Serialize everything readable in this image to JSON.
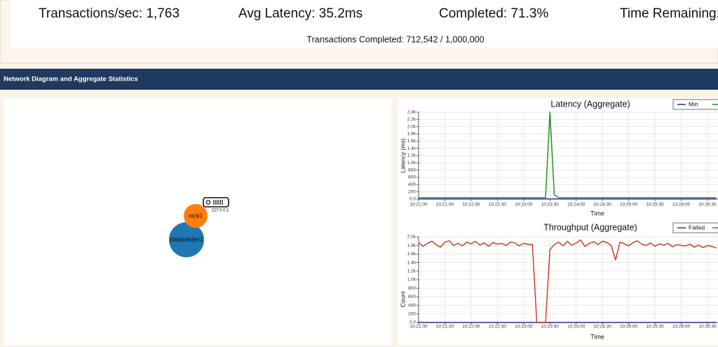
{
  "header": {
    "stats": [
      "Transactions/sec: 1,763",
      "Avg Latency: 35.2ms",
      "Completed: 71.3%",
      "Time Remaining:"
    ],
    "progress": "Transactions Completed: 712,542 / 1,000,000"
  },
  "section_title": "Network Diagram and Aggregate Statistics",
  "network": {
    "nodes": [
      {
        "label": "datacenter1"
      },
      {
        "label": "rack1"
      },
      {
        "label": "127.0.0.1"
      }
    ]
  },
  "chart_data": [
    {
      "type": "line",
      "title": "Latency (Aggregate)",
      "xlabel": "Time",
      "ylabel": "Latency (ms)",
      "grid": true,
      "x": [
        "10:21:00",
        "10:21:05",
        "10:21:10",
        "10:21:15",
        "10:21:20",
        "10:21:25",
        "10:21:30",
        "10:21:35",
        "10:21:40",
        "10:21:45",
        "10:21:50",
        "10:21:55",
        "10:22:00",
        "10:22:05",
        "10:22:10",
        "10:22:15",
        "10:22:20",
        "10:22:25",
        "10:22:30",
        "10:22:35",
        "10:22:40",
        "10:22:45",
        "10:22:50",
        "10:22:55",
        "10:23:00",
        "10:23:05",
        "10:23:10",
        "10:23:15",
        "10:23:20",
        "10:23:25",
        "10:23:30",
        "10:23:35",
        "10:23:40",
        "10:23:45",
        "10:23:50",
        "10:23:55",
        "10:24:00",
        "10:24:05",
        "10:24:10",
        "10:24:15",
        "10:24:20",
        "10:24:25",
        "10:24:30",
        "10:24:35",
        "10:24:40",
        "10:24:45",
        "10:24:50",
        "10:24:55",
        "10:25:00",
        "10:25:05",
        "10:25:10",
        "10:25:15",
        "10:25:20",
        "10:25:25",
        "10:25:30",
        "10:25:35",
        "10:25:40",
        "10:25:45",
        "10:25:50",
        "10:25:55",
        "10:26:00",
        "10:26:05",
        "10:26:10",
        "10:26:15",
        "10:26:20",
        "10:26:25",
        "10:26:30",
        "10:26:35",
        "10:26:40"
      ],
      "xlim": [
        "10:21:00",
        "10:26:42"
      ],
      "xticks": [
        "10:21:00",
        "10:21:30",
        "10:22:00",
        "10:22:30",
        "10:23:00",
        "10:23:30",
        "10:24:00",
        "10:24:30",
        "10:25:00",
        "10:25:30",
        "10:26:00",
        "10:26:30"
      ],
      "ylim": [
        0,
        2400
      ],
      "yticks": [
        {
          "value": 0,
          "label": "0.0"
        },
        200,
        400,
        600,
        800,
        {
          "value": 1000,
          "label": "1.0k"
        },
        {
          "value": 1200,
          "label": "1.2k"
        },
        {
          "value": 1400,
          "label": "1.4k"
        },
        {
          "value": 1600,
          "label": "1.6k"
        },
        {
          "value": 1800,
          "label": "1.8k"
        },
        {
          "value": 2000,
          "label": "2.0k"
        },
        {
          "value": 2200,
          "label": "2.2k"
        },
        {
          "value": 2400,
          "label": "2.4k"
        }
      ],
      "series": [
        {
          "name": "Min",
          "color": "#2a2a9a",
          "values": [
            5,
            5,
            5,
            5,
            5,
            5,
            5,
            5,
            5,
            5,
            5,
            5,
            5,
            5,
            5,
            5,
            5,
            5,
            5,
            5,
            5,
            5,
            5,
            5,
            5,
            5,
            5,
            5,
            5,
            5,
            5,
            5,
            5,
            5,
            5,
            5,
            5,
            5,
            5,
            5,
            5,
            5,
            5,
            5,
            5,
            5,
            5,
            5,
            5,
            5,
            5,
            5,
            5,
            5,
            5,
            5,
            5,
            5,
            5,
            5,
            5,
            5,
            5,
            5,
            5,
            5,
            5,
            5,
            5
          ]
        },
        {
          "color": "#1a8a1a",
          "values": [
            40,
            40,
            40,
            40,
            40,
            40,
            40,
            40,
            40,
            40,
            40,
            40,
            40,
            40,
            40,
            40,
            40,
            40,
            40,
            40,
            40,
            40,
            40,
            40,
            40,
            40,
            40,
            40,
            40,
            40,
            2400,
            120,
            40,
            40,
            40,
            40,
            40,
            40,
            40,
            40,
            40,
            40,
            40,
            40,
            40,
            40,
            40,
            40,
            40,
            40,
            40,
            40,
            40,
            40,
            40,
            40,
            40,
            40,
            40,
            40,
            40,
            40,
            40,
            40,
            40,
            40,
            40,
            40,
            40
          ]
        }
      ]
    },
    {
      "type": "line",
      "title": "Throughput (Aggregate)",
      "xlabel": "Time",
      "ylabel": "Count",
      "grid": true,
      "x": [
        "10:21:00",
        "10:21:05",
        "10:21:10",
        "10:21:15",
        "10:21:20",
        "10:21:25",
        "10:21:30",
        "10:21:35",
        "10:21:40",
        "10:21:45",
        "10:21:50",
        "10:21:55",
        "10:22:00",
        "10:22:05",
        "10:22:10",
        "10:22:15",
        "10:22:20",
        "10:22:25",
        "10:22:30",
        "10:22:35",
        "10:22:40",
        "10:22:45",
        "10:22:50",
        "10:22:55",
        "10:23:00",
        "10:23:05",
        "10:23:10",
        "10:23:15",
        "10:23:20",
        "10:23:25",
        "10:23:30",
        "10:23:35",
        "10:23:40",
        "10:23:45",
        "10:23:50",
        "10:23:55",
        "10:24:00",
        "10:24:05",
        "10:24:10",
        "10:24:15",
        "10:24:20",
        "10:24:25",
        "10:24:30",
        "10:24:35",
        "10:24:40",
        "10:24:45",
        "10:24:50",
        "10:24:55",
        "10:25:00",
        "10:25:05",
        "10:25:10",
        "10:25:15",
        "10:25:20",
        "10:25:25",
        "10:25:30",
        "10:25:35",
        "10:25:40",
        "10:25:45",
        "10:25:50",
        "10:25:55",
        "10:26:00",
        "10:26:05",
        "10:26:10",
        "10:26:15",
        "10:26:20",
        "10:26:25",
        "10:26:30",
        "10:26:35",
        "10:26:40"
      ],
      "xlim": [
        "10:21:00",
        "10:26:42"
      ],
      "xticks": [
        "10:21:00",
        "10:21:30",
        "10:22:00",
        "10:22:30",
        "10:23:00",
        "10:23:30",
        "10:24:00",
        "10:24:30",
        "10:25:00",
        "10:25:30",
        "10:26:00",
        "10:26:30"
      ],
      "ylim": [
        0,
        2000
      ],
      "yticks": [
        {
          "value": 0,
          "label": "0.0"
        },
        200,
        400,
        600,
        800,
        {
          "value": 1000,
          "label": "1.0k"
        },
        {
          "value": 1200,
          "label": "1.2k"
        },
        {
          "value": 1400,
          "label": "1.4k"
        },
        {
          "value": 1600,
          "label": "1.6k"
        },
        {
          "value": 1800,
          "label": "1.8k"
        },
        {
          "value": 2000,
          "label": "2.0k"
        }
      ],
      "series": [
        {
          "name": "Failed",
          "color": "#2a2a9a",
          "values": [
            0,
            0,
            0,
            0,
            0,
            0,
            0,
            0,
            0,
            0,
            0,
            0,
            0,
            0,
            0,
            0,
            0,
            0,
            0,
            0,
            0,
            0,
            0,
            0,
            0,
            0,
            0,
            0,
            0,
            0,
            0,
            0,
            0,
            0,
            0,
            0,
            0,
            0,
            0,
            0,
            0,
            0,
            0,
            0,
            0,
            0,
            0,
            0,
            0,
            0,
            0,
            0,
            0,
            0,
            0,
            0,
            0,
            0,
            0,
            0,
            0,
            0,
            0,
            0,
            0,
            0,
            0,
            0,
            0
          ]
        },
        {
          "color": "#c8341a",
          "values": [
            1870,
            1780,
            1850,
            1900,
            1820,
            1760,
            1880,
            1910,
            1800,
            1850,
            1790,
            1880,
            1840,
            1900,
            1810,
            1860,
            1780,
            1870,
            1830,
            1850,
            1800,
            1880,
            1860,
            1790,
            1850,
            1830,
            1820,
            0,
            0,
            0,
            1700,
            1820,
            1880,
            1790,
            1900,
            1810,
            1860,
            1930,
            1780,
            1850,
            1890,
            1820,
            1900,
            1870,
            1800,
            1460,
            1880,
            1840,
            1790,
            1870,
            1910,
            1830,
            1800,
            1860,
            1780,
            1840,
            1810,
            1850,
            1770,
            1820,
            1800,
            1790,
            1830,
            1760,
            1810,
            1750,
            1800,
            1780,
            1740
          ]
        }
      ]
    }
  ]
}
